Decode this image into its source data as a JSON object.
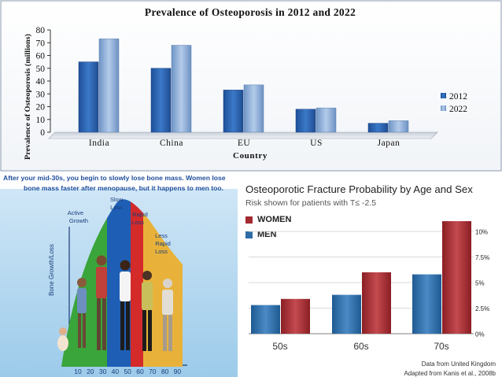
{
  "chart_data": [
    {
      "type": "bar",
      "title": "Prevalence of Osteoporosis in 2012 and 2022",
      "xlabel": "Country",
      "ylabel": "Prevalence of Osteoporosis (millions)",
      "categories": [
        "India",
        "China",
        "EU",
        "US",
        "Japan"
      ],
      "ylim": [
        0,
        80
      ],
      "yticks": [
        "0",
        "10",
        "20",
        "30",
        "40",
        "50",
        "60",
        "70",
        "80"
      ],
      "series": [
        {
          "name": "2012",
          "values": [
            55,
            50,
            33,
            18,
            7
          ],
          "color": "#2d63b0"
        },
        {
          "name": "2022",
          "values": [
            73,
            68,
            37,
            19,
            9
          ],
          "color": "#8fb0d9"
        }
      ],
      "legend_position": "right",
      "grid": false
    },
    {
      "type": "area",
      "caption_lines": [
        "After your mid-30s, you begin to slowly lose bone mass.  Women lose",
        "bone mass faster after menopause, but it happens to men too."
      ],
      "ylabel": "Bone Growth/Loss",
      "x_ticks": [
        "10",
        "20",
        "30",
        "40",
        "50",
        "60",
        "70",
        "80",
        "90"
      ],
      "annotations": [
        "Active Growth",
        "Slow Loss",
        "Rapid Loss",
        "Less Rapid Loss"
      ],
      "phase_colors": [
        "#3aa53a",
        "#1e5fb5",
        "#d42a2a",
        "#e8b23a"
      ]
    },
    {
      "type": "bar",
      "title": "Osteoporotic Fracture Probability by Age and Sex",
      "subtitle": "Risk shown for patients with T≤ -2.5",
      "categories": [
        "50s",
        "60s",
        "70s"
      ],
      "ylim": [
        0,
        11
      ],
      "yticks": [
        "0%",
        "2.5%",
        "5%",
        "7.5%",
        "10%"
      ],
      "series": [
        {
          "name": "MEN",
          "values": [
            2.8,
            3.8,
            5.8
          ],
          "color": "#2e6ca7"
        },
        {
          "name": "WOMEN",
          "values": [
            3.4,
            6.0,
            11.0
          ],
          "color": "#a32a2f"
        }
      ],
      "legend_order": [
        "WOMEN",
        "MEN"
      ],
      "source": [
        "Data from United Kingdom",
        "Adapted from Kanis et al., 2008b"
      ]
    }
  ]
}
